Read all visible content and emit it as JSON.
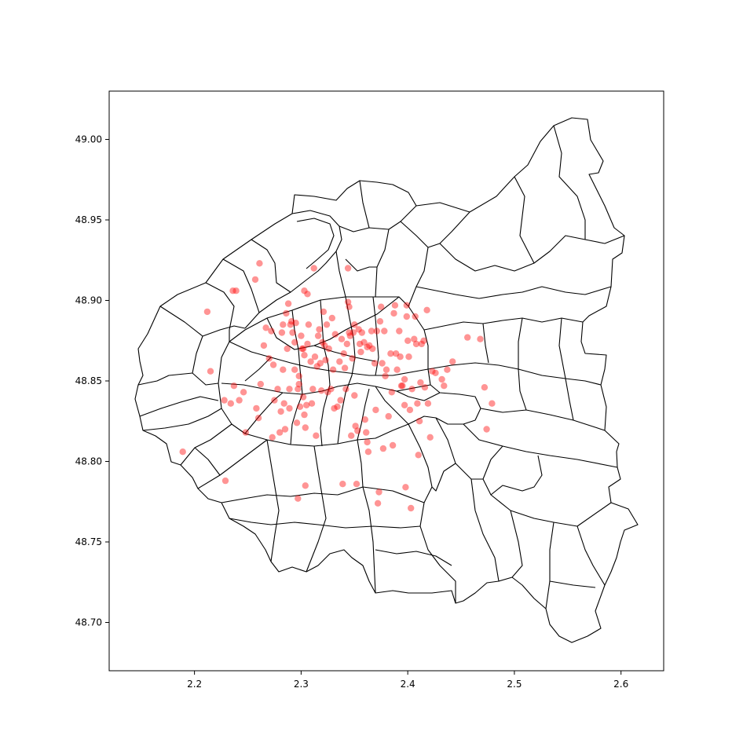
{
  "chart_data": {
    "type": "scatter",
    "title": "",
    "xlabel": "",
    "ylabel": "",
    "xlim": [
      2.12,
      2.64
    ],
    "ylim": [
      48.67,
      49.03
    ],
    "x_ticks": [
      "2.2",
      "2.3",
      "2.4",
      "2.5",
      "2.6"
    ],
    "y_ticks": [
      "48.70",
      "48.75",
      "48.80",
      "48.85",
      "48.90",
      "48.95",
      "49.00"
    ],
    "grid": false,
    "legend": "none",
    "point_color": "#ff0000",
    "outline_color": "#000000",
    "background": "regional municipality boundary outlines (Paris and inner suburbs)",
    "points": [
      [
        2.189,
        48.806
      ],
      [
        2.212,
        48.893
      ],
      [
        2.215,
        48.856
      ],
      [
        2.228,
        48.838
      ],
      [
        2.229,
        48.788
      ],
      [
        2.234,
        48.836
      ],
      [
        2.236,
        48.906
      ],
      [
        2.237,
        48.847
      ],
      [
        2.239,
        48.906
      ],
      [
        2.242,
        48.838
      ],
      [
        2.246,
        48.843
      ],
      [
        2.248,
        48.818
      ],
      [
        2.257,
        48.913
      ],
      [
        2.258,
        48.833
      ],
      [
        2.26,
        48.827
      ],
      [
        2.261,
        48.923
      ],
      [
        2.262,
        48.848
      ],
      [
        2.265,
        48.872
      ],
      [
        2.267,
        48.883
      ],
      [
        2.27,
        48.864
      ],
      [
        2.272,
        48.881
      ],
      [
        2.273,
        48.815
      ],
      [
        2.274,
        48.86
      ],
      [
        2.275,
        48.838
      ],
      [
        2.278,
        48.845
      ],
      [
        2.28,
        48.818
      ],
      [
        2.281,
        48.831
      ],
      [
        2.282,
        48.88
      ],
      [
        2.283,
        48.857
      ],
      [
        2.283,
        48.885
      ],
      [
        2.284,
        48.836
      ],
      [
        2.285,
        48.82
      ],
      [
        2.286,
        48.892
      ],
      [
        2.287,
        48.87
      ],
      [
        2.288,
        48.898
      ],
      [
        2.289,
        48.845
      ],
      [
        2.289,
        48.833
      ],
      [
        2.29,
        48.885
      ],
      [
        2.291,
        48.887
      ],
      [
        2.292,
        48.88
      ],
      [
        2.294,
        48.874
      ],
      [
        2.294,
        48.857
      ],
      [
        2.295,
        48.886
      ],
      [
        2.296,
        48.824
      ],
      [
        2.297,
        48.845
      ],
      [
        2.297,
        48.777
      ],
      [
        2.298,
        48.853
      ],
      [
        2.298,
        48.848
      ],
      [
        2.299,
        48.834
      ],
      [
        2.3,
        48.878
      ],
      [
        2.301,
        48.87
      ],
      [
        2.302,
        48.87
      ],
      [
        2.302,
        48.84
      ],
      [
        2.303,
        48.829
      ],
      [
        2.303,
        48.866
      ],
      [
        2.303,
        48.906
      ],
      [
        2.304,
        48.821
      ],
      [
        2.304,
        48.785
      ],
      [
        2.305,
        48.835
      ],
      [
        2.306,
        48.904
      ],
      [
        2.306,
        48.873
      ],
      [
        2.307,
        48.885
      ],
      [
        2.309,
        48.862
      ],
      [
        2.31,
        48.836
      ],
      [
        2.311,
        48.845
      ],
      [
        2.312,
        48.92
      ],
      [
        2.313,
        48.865
      ],
      [
        2.314,
        48.816
      ],
      [
        2.315,
        48.859
      ],
      [
        2.316,
        48.878
      ],
      [
        2.317,
        48.882
      ],
      [
        2.318,
        48.861
      ],
      [
        2.319,
        48.844
      ],
      [
        2.32,
        48.874
      ],
      [
        2.321,
        48.893
      ],
      [
        2.322,
        48.872
      ],
      [
        2.323,
        48.863
      ],
      [
        2.324,
        48.885
      ],
      [
        2.325,
        48.843
      ],
      [
        2.326,
        48.87
      ],
      [
        2.328,
        48.845
      ],
      [
        2.329,
        48.889
      ],
      [
        2.33,
        48.857
      ],
      [
        2.331,
        48.833
      ],
      [
        2.332,
        48.879
      ],
      [
        2.334,
        48.834
      ],
      [
        2.336,
        48.862
      ],
      [
        2.337,
        48.838
      ],
      [
        2.338,
        48.876
      ],
      [
        2.339,
        48.786
      ],
      [
        2.34,
        48.867
      ],
      [
        2.341,
        48.858
      ],
      [
        2.342,
        48.845
      ],
      [
        2.343,
        48.873
      ],
      [
        2.344,
        48.92
      ],
      [
        2.344,
        48.899
      ],
      [
        2.345,
        48.88
      ],
      [
        2.345,
        48.896
      ],
      [
        2.346,
        48.878
      ],
      [
        2.347,
        48.816
      ],
      [
        2.348,
        48.864
      ],
      [
        2.349,
        48.88
      ],
      [
        2.35,
        48.885
      ],
      [
        2.35,
        48.841
      ],
      [
        2.351,
        48.822
      ],
      [
        2.352,
        48.786
      ],
      [
        2.353,
        48.819
      ],
      [
        2.354,
        48.882
      ],
      [
        2.355,
        48.873
      ],
      [
        2.356,
        48.868
      ],
      [
        2.357,
        48.88
      ],
      [
        2.359,
        48.874
      ],
      [
        2.36,
        48.826
      ],
      [
        2.361,
        48.818
      ],
      [
        2.362,
        48.871
      ],
      [
        2.362,
        48.812
      ],
      [
        2.363,
        48.806
      ],
      [
        2.364,
        48.872
      ],
      [
        2.366,
        48.881
      ],
      [
        2.367,
        48.87
      ],
      [
        2.369,
        48.861
      ],
      [
        2.37,
        48.832
      ],
      [
        2.371,
        48.881
      ],
      [
        2.372,
        48.774
      ],
      [
        2.373,
        48.781
      ],
      [
        2.374,
        48.887
      ],
      [
        2.375,
        48.896
      ],
      [
        2.376,
        48.861
      ],
      [
        2.377,
        48.808
      ],
      [
        2.378,
        48.881
      ],
      [
        2.379,
        48.853
      ],
      [
        2.38,
        48.857
      ],
      [
        2.382,
        48.828
      ],
      [
        2.384,
        48.867
      ],
      [
        2.385,
        48.843
      ],
      [
        2.386,
        48.81
      ],
      [
        2.387,
        48.892
      ],
      [
        2.388,
        48.897
      ],
      [
        2.389,
        48.867
      ],
      [
        2.39,
        48.857
      ],
      [
        2.392,
        48.881
      ],
      [
        2.393,
        48.865
      ],
      [
        2.394,
        48.847
      ],
      [
        2.395,
        48.847
      ],
      [
        2.397,
        48.835
      ],
      [
        2.397,
        48.851
      ],
      [
        2.398,
        48.784
      ],
      [
        2.399,
        48.897
      ],
      [
        2.399,
        48.89
      ],
      [
        2.4,
        48.875
      ],
      [
        2.401,
        48.865
      ],
      [
        2.402,
        48.832
      ],
      [
        2.403,
        48.771
      ],
      [
        2.404,
        48.845
      ],
      [
        2.406,
        48.876
      ],
      [
        2.407,
        48.89
      ],
      [
        2.408,
        48.873
      ],
      [
        2.409,
        48.836
      ],
      [
        2.41,
        48.804
      ],
      [
        2.411,
        48.825
      ],
      [
        2.412,
        48.849
      ],
      [
        2.413,
        48.873
      ],
      [
        2.415,
        48.875
      ],
      [
        2.416,
        48.846
      ],
      [
        2.418,
        48.894
      ],
      [
        2.419,
        48.836
      ],
      [
        2.421,
        48.815
      ],
      [
        2.423,
        48.856
      ],
      [
        2.426,
        48.855
      ],
      [
        2.432,
        48.851
      ],
      [
        2.434,
        48.847
      ],
      [
        2.437,
        48.857
      ],
      [
        2.442,
        48.862
      ],
      [
        2.456,
        48.877
      ],
      [
        2.468,
        48.876
      ],
      [
        2.472,
        48.846
      ],
      [
        2.474,
        48.82
      ],
      [
        2.479,
        48.836
      ]
    ]
  }
}
